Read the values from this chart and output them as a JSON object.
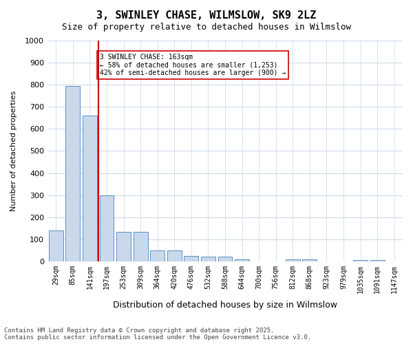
{
  "title": "3, SWINLEY CHASE, WILMSLOW, SK9 2LZ",
  "subtitle": "Size of property relative to detached houses in Wilmslow",
  "xlabel": "Distribution of detached houses by size in Wilmslow",
  "ylabel": "Number of detached properties",
  "categories": [
    "29sqm",
    "85sqm",
    "141sqm",
    "197sqm",
    "253sqm",
    "309sqm",
    "364sqm",
    "420sqm",
    "476sqm",
    "532sqm",
    "588sqm",
    "644sqm",
    "700sqm",
    "756sqm",
    "812sqm",
    "868sqm",
    "923sqm",
    "979sqm",
    "1035sqm",
    "1091sqm",
    "1147sqm"
  ],
  "values": [
    140,
    795,
    660,
    300,
    135,
    135,
    50,
    50,
    25,
    20,
    20,
    10,
    0,
    0,
    10,
    10,
    0,
    0,
    5,
    5,
    0
  ],
  "bar_color": "#c9d9eb",
  "bar_edge_color": "#5b8fc4",
  "vline_x": 2.5,
  "vline_color": "#cc0000",
  "annotation_text": "3 SWINLEY CHASE: 163sqm\n← 58% of detached houses are smaller (1,253)\n42% of semi-detached houses are larger (900) →",
  "annotation_box_color": "#cc0000",
  "ylim": [
    0,
    1000
  ],
  "yticks": [
    0,
    100,
    200,
    300,
    400,
    500,
    600,
    700,
    800,
    900,
    1000
  ],
  "background_color": "#ffffff",
  "grid_color": "#c8d8e8",
  "footer_line1": "Contains HM Land Registry data © Crown copyright and database right 2025.",
  "footer_line2": "Contains public sector information licensed under the Open Government Licence v3.0."
}
